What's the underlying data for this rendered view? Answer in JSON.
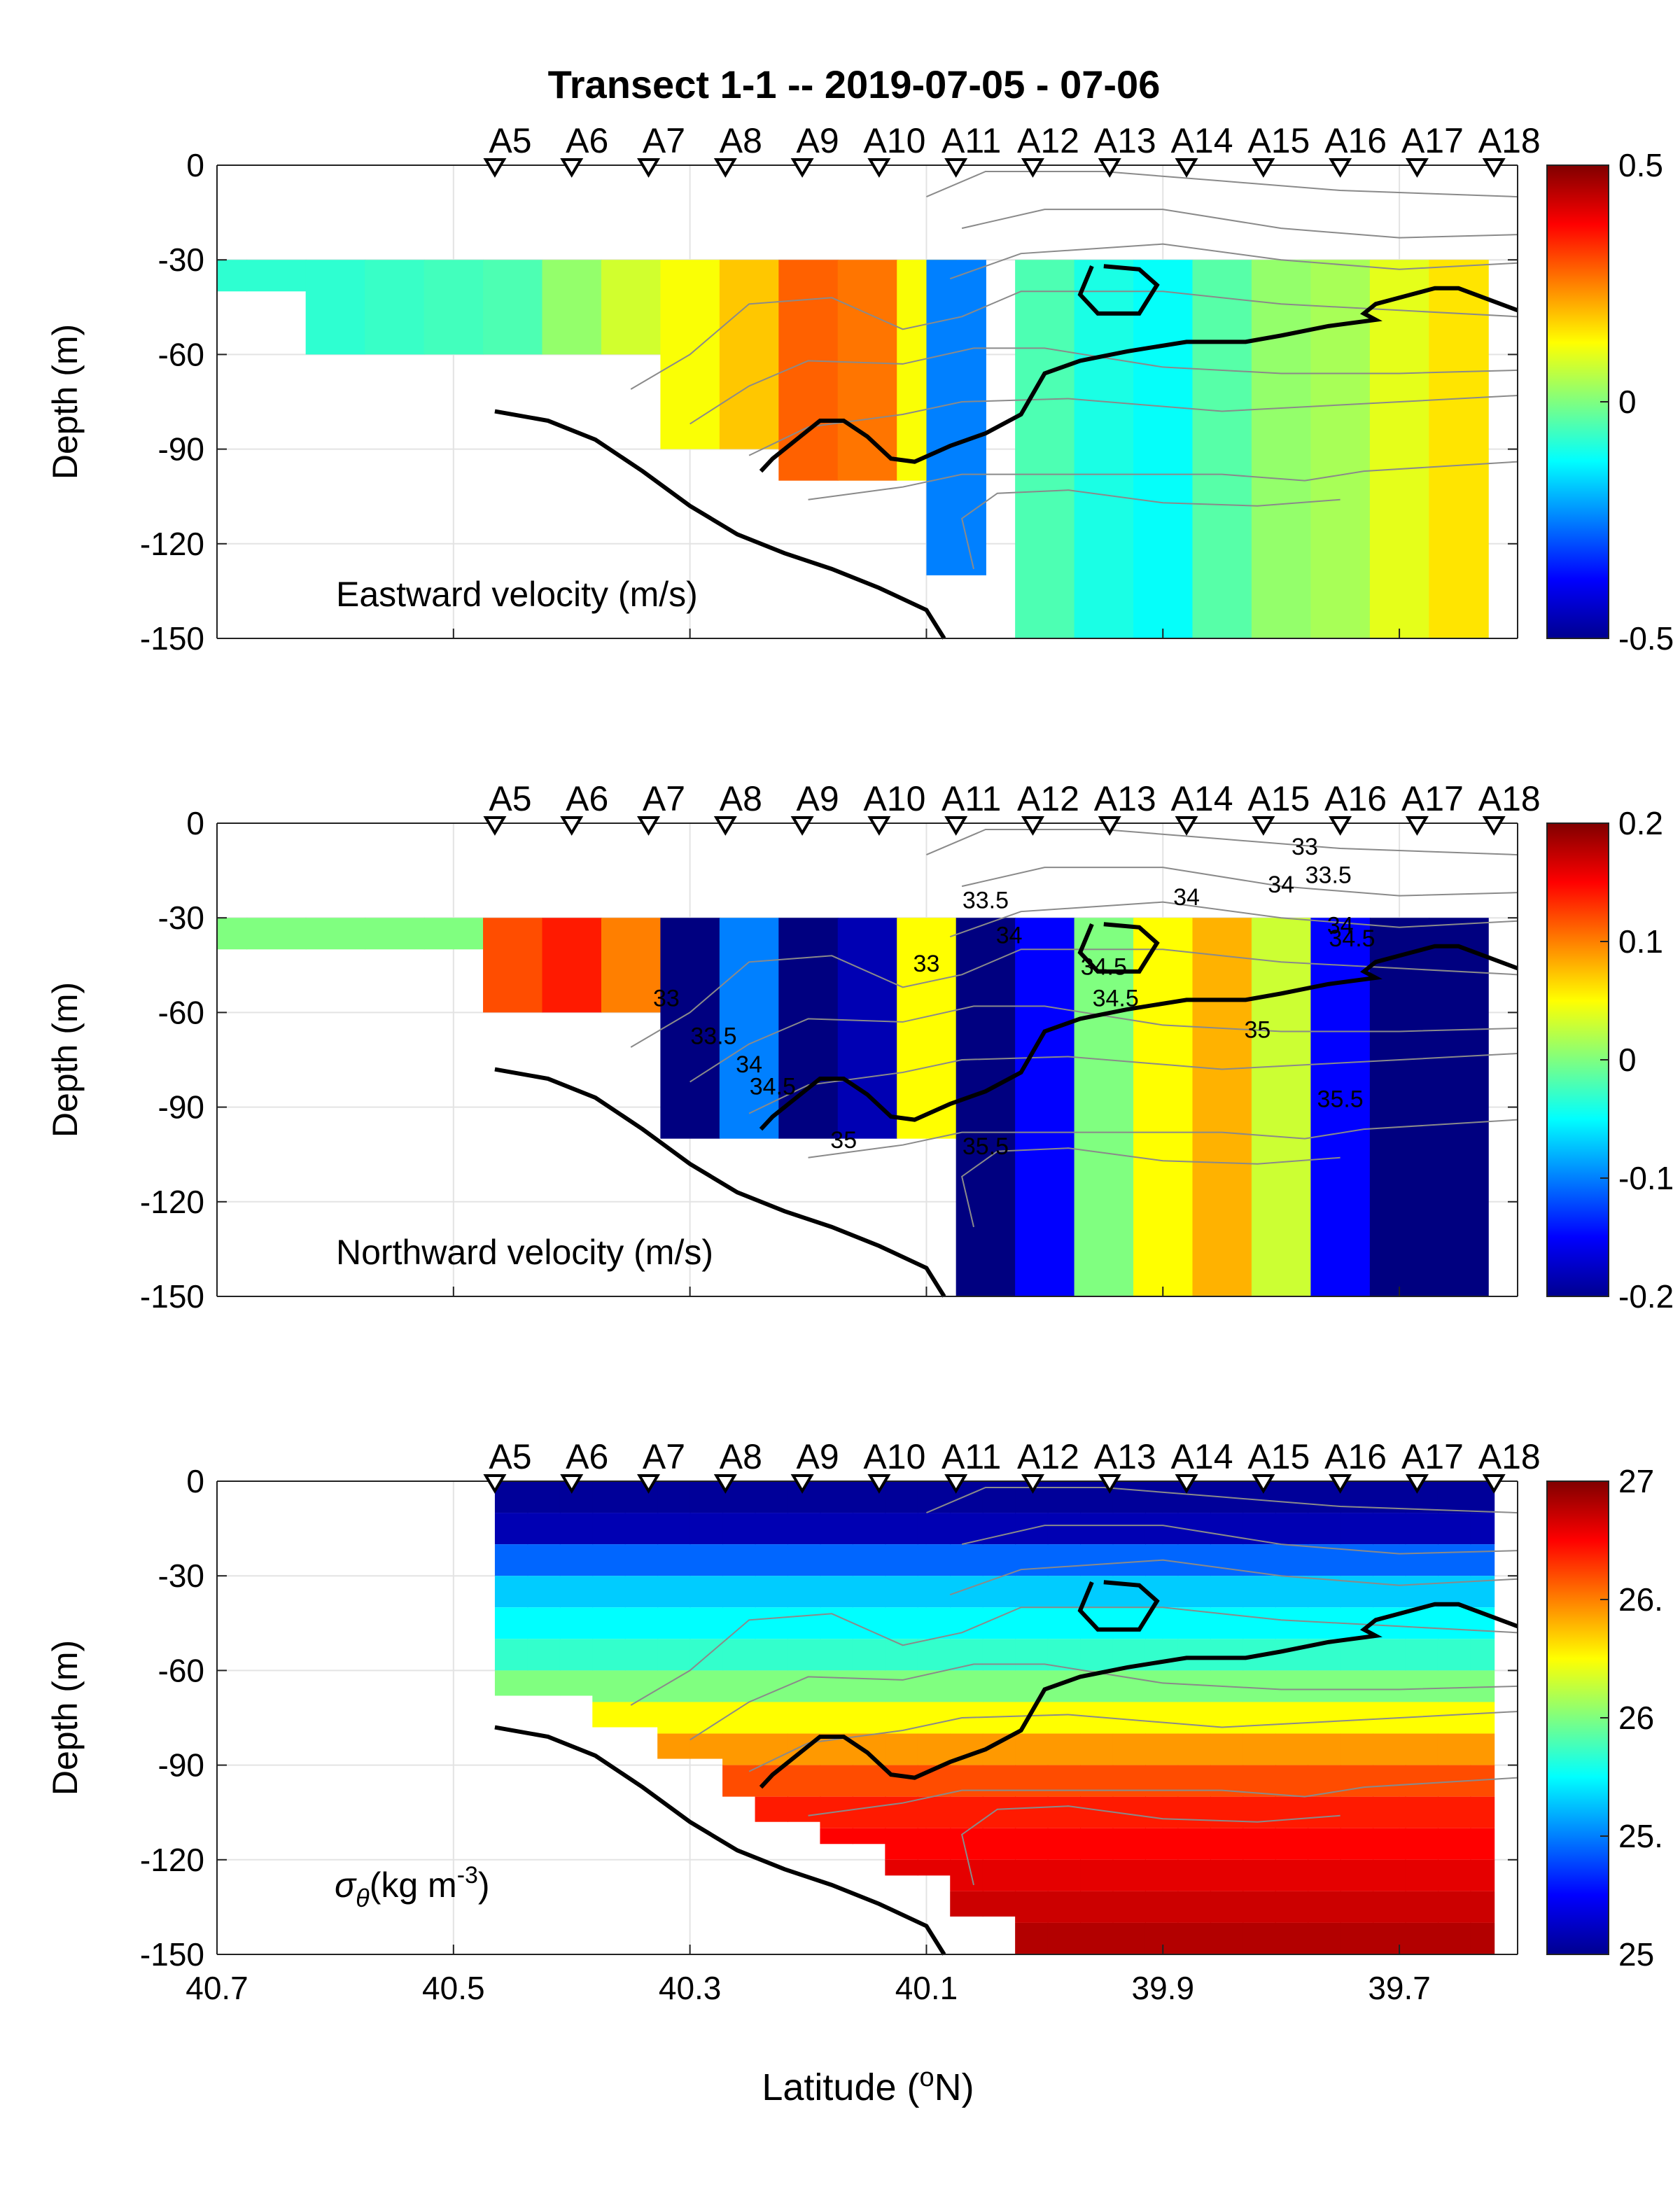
{
  "title": "Transect 1-1 -- 2019-07-05 - 07-06",
  "chart_data": [
    {
      "type": "heatmap",
      "panel_label": "Eastward velocity (m/s)",
      "ylabel": "Depth (m)",
      "xlim": [
        40.7,
        39.6
      ],
      "ylim": [
        -150,
        0
      ],
      "x_ticks": [
        "40.7",
        "40.5",
        "40.3",
        "40.1",
        "39.9",
        "39.7"
      ],
      "x_tick_values": [
        40.7,
        40.5,
        40.3,
        40.1,
        39.9,
        39.7
      ],
      "y_ticks": [
        "0",
        "-30",
        "-60",
        "-90",
        "-120",
        "-150"
      ],
      "y_tick_values": [
        0,
        -30,
        -60,
        -90,
        -120,
        -150
      ],
      "stations": [
        "A5",
        "A6",
        "A7",
        "A8",
        "A9",
        "A10",
        "A11",
        "A12",
        "A13",
        "A14",
        "A15",
        "A16",
        "A17",
        "A18"
      ],
      "station_lat": [
        40.465,
        40.4,
        40.335,
        40.27,
        40.205,
        40.14,
        40.075,
        40.01,
        39.945,
        39.88,
        39.815,
        39.75,
        39.685,
        39.62
      ],
      "colorbar": {
        "min": -0.5,
        "max": 0.5,
        "ticks": [
          "0.5",
          "0",
          "-0.5"
        ],
        "tick_values": [
          0.5,
          0,
          -0.5
        ],
        "colormap": "jet"
      },
      "grid": true,
      "sections": [
        {
          "lat": [
            40.7,
            40.65
          ],
          "top": -30,
          "bottom": -40,
          "values": [
            -0.08,
            -0.08
          ]
        },
        {
          "lat": [
            40.6,
            40.55,
            40.5
          ],
          "top": -30,
          "bottom": -60,
          "values": [
            -0.08,
            -0.07,
            -0.06
          ]
        },
        {
          "lat": [
            40.45,
            40.4,
            40.35
          ],
          "top": -30,
          "bottom": -60,
          "values": [
            -0.05,
            0.02,
            0.08
          ]
        },
        {
          "lat": [
            40.3,
            40.25
          ],
          "top": -30,
          "bottom": -90,
          "values": [
            0.12,
            0.18
          ]
        },
        {
          "lat": [
            40.2,
            40.15
          ],
          "top": -30,
          "bottom": -100,
          "values": [
            0.28,
            0.26
          ]
        },
        {
          "lat": [
            40.1
          ],
          "top": -30,
          "bottom": -100,
          "values": [
            0.12
          ]
        },
        {
          "lat": [
            40.075
          ],
          "top": -30,
          "bottom": -130,
          "values": [
            -0.25
          ]
        },
        {
          "lat": [
            40.0,
            39.95,
            39.9,
            39.85
          ],
          "top": -30,
          "bottom": -150,
          "values": [
            -0.05,
            -0.1,
            -0.12,
            -0.04
          ]
        },
        {
          "lat": [
            39.8,
            39.75,
            39.7,
            39.65
          ],
          "top": -30,
          "bottom": -150,
          "values": [
            0.02,
            0.04,
            0.1,
            0.15
          ]
        }
      ]
    },
    {
      "type": "heatmap",
      "panel_label": "Northward velocity (m/s)",
      "ylabel": "Depth (m)",
      "xlim": [
        40.7,
        39.6
      ],
      "ylim": [
        -150,
        0
      ],
      "x_ticks": [],
      "y_ticks": [
        "0",
        "-30",
        "-60",
        "-90",
        "-120",
        "-150"
      ],
      "y_tick_values": [
        0,
        -30,
        -60,
        -90,
        -120,
        -150
      ],
      "stations": [
        "A5",
        "A6",
        "A7",
        "A8",
        "A9",
        "A10",
        "A11",
        "A12",
        "A13",
        "A14",
        "A15",
        "A16",
        "A17",
        "A18"
      ],
      "colorbar": {
        "min": -0.2,
        "max": 0.2,
        "ticks": [
          "0.2",
          "0.1",
          "0",
          "-0.1",
          "-0.2"
        ],
        "tick_values": [
          0.2,
          0.1,
          0,
          -0.1,
          -0.2
        ],
        "colormap": "jet"
      },
      "salinity_contour_labels": [
        {
          "text": "33",
          "lat": 39.78,
          "depth": -10
        },
        {
          "text": "34",
          "lat": 39.8,
          "depth": -22
        },
        {
          "text": "33.5",
          "lat": 39.76,
          "depth": -19
        },
        {
          "text": "34",
          "lat": 39.88,
          "depth": -26
        },
        {
          "text": "33.5",
          "lat": 40.05,
          "depth": -27
        },
        {
          "text": "34",
          "lat": 40.03,
          "depth": -38
        },
        {
          "text": "34",
          "lat": 39.75,
          "depth": -35
        },
        {
          "text": "34.5",
          "lat": 39.74,
          "depth": -39
        },
        {
          "text": "33",
          "lat": 40.1,
          "depth": -47
        },
        {
          "text": "34.5",
          "lat": 39.95,
          "depth": -48
        },
        {
          "text": "34.5",
          "lat": 39.94,
          "depth": -58
        },
        {
          "text": "35",
          "lat": 39.82,
          "depth": -68
        },
        {
          "text": "33",
          "lat": 40.32,
          "depth": -58
        },
        {
          "text": "33.5",
          "lat": 40.28,
          "depth": -70
        },
        {
          "text": "34",
          "lat": 40.25,
          "depth": -79
        },
        {
          "text": "34.5",
          "lat": 40.23,
          "depth": -86
        },
        {
          "text": "35",
          "lat": 40.17,
          "depth": -103
        },
        {
          "text": "35.5",
          "lat": 40.05,
          "depth": -105
        },
        {
          "text": "35.5",
          "lat": 39.75,
          "depth": -90
        }
      ],
      "sections": [
        {
          "lat": [
            40.7,
            40.65,
            40.6,
            40.55,
            40.5
          ],
          "top": -30,
          "bottom": -40,
          "values": [
            0.0,
            0.0,
            0.0,
            0.0,
            0.0
          ]
        },
        {
          "lat": [
            40.45,
            40.4,
            40.35
          ],
          "top": -30,
          "bottom": -60,
          "values": [
            0.12,
            0.14,
            0.1
          ]
        },
        {
          "lat": [
            40.3,
            40.25,
            40.2,
            40.15,
            40.1
          ],
          "top": -30,
          "bottom": -100,
          "values": [
            -0.2,
            -0.1,
            -0.2,
            -0.18,
            0.05
          ]
        },
        {
          "lat": [
            40.05,
            40.0,
            39.95
          ],
          "top": -30,
          "bottom": -150,
          "values": [
            -0.2,
            -0.15,
            0.0
          ]
        },
        {
          "lat": [
            39.9,
            39.85,
            39.8
          ],
          "top": -30,
          "bottom": -150,
          "values": [
            0.05,
            0.08,
            0.03
          ]
        },
        {
          "lat": [
            39.75,
            39.7,
            39.65
          ],
          "top": -30,
          "bottom": -150,
          "values": [
            -0.15,
            -0.2,
            -0.2
          ]
        }
      ]
    },
    {
      "type": "heatmap",
      "panel_label": "σθ(kg m-3)",
      "panel_label_parts": {
        "sigma": "σ",
        "sub": "θ",
        "unit": "(kg m",
        "exp": "-3",
        "close": ")"
      },
      "xlabel": "Latitude (oN)",
      "xlabel_parts": {
        "pre": "Latitude (",
        "sup": "o",
        "post": "N)"
      },
      "ylabel": "Depth (m)",
      "xlim": [
        40.7,
        39.6
      ],
      "ylim": [
        -150,
        0
      ],
      "x_ticks": [
        "40.7",
        "40.5",
        "40.3",
        "40.1",
        "39.9",
        "39.7"
      ],
      "x_tick_values": [
        40.7,
        40.5,
        40.3,
        40.1,
        39.9,
        39.7
      ],
      "y_ticks": [
        "0",
        "-30",
        "-60",
        "-90",
        "-120",
        "-150"
      ],
      "y_tick_values": [
        0,
        -30,
        -60,
        -90,
        -120,
        -150
      ],
      "stations": [
        "A5",
        "A6",
        "A7",
        "A8",
        "A9",
        "A10",
        "A11",
        "A12",
        "A13",
        "A14",
        "A15",
        "A16",
        "A17",
        "A18"
      ],
      "colorbar": {
        "min": 25,
        "max": 27,
        "ticks": [
          "27",
          "26.",
          "26",
          "25.",
          "25"
        ],
        "tick_values": [
          27,
          26.5,
          26,
          25.5,
          25
        ],
        "colormap": "jet"
      },
      "profile_depths": [
        -5,
        -15,
        -25,
        -35,
        -45,
        -55,
        -65,
        -75,
        -85,
        -95,
        -105,
        -115,
        -125,
        -135,
        -145
      ],
      "profile_values": [
        25.05,
        25.1,
        25.45,
        25.65,
        25.75,
        25.85,
        26.0,
        26.25,
        26.45,
        26.6,
        26.7,
        26.75,
        26.8,
        26.85,
        26.9
      ],
      "data_extent": [
        {
          "lat": 40.465,
          "bottom": -68
        },
        {
          "lat": 40.4,
          "bottom": -68
        },
        {
          "lat": 40.35,
          "bottom": -78
        },
        {
          "lat": 40.3,
          "bottom": -88
        },
        {
          "lat": 40.25,
          "bottom": -100
        },
        {
          "lat": 40.2,
          "bottom": -108
        },
        {
          "lat": 40.15,
          "bottom": -115
        },
        {
          "lat": 40.1,
          "bottom": -125
        },
        {
          "lat": 40.05,
          "bottom": -138
        },
        {
          "lat": 40.0,
          "bottom": -150
        },
        {
          "lat": 39.62,
          "bottom": -150
        }
      ]
    }
  ],
  "bottom_line": [
    [
      40.465,
      -78
    ],
    [
      40.42,
      -81
    ],
    [
      40.38,
      -87
    ],
    [
      40.34,
      -97
    ],
    [
      40.3,
      -108
    ],
    [
      40.26,
      -117
    ],
    [
      40.22,
      -123
    ],
    [
      40.18,
      -128
    ],
    [
      40.14,
      -134
    ],
    [
      40.1,
      -141
    ],
    [
      40.085,
      -150
    ]
  ],
  "salinity_35_contour": [
    [
      40.24,
      -97
    ],
    [
      40.23,
      -93
    ],
    [
      40.21,
      -87
    ],
    [
      40.19,
      -81
    ],
    [
      40.17,
      -81
    ],
    [
      40.15,
      -86
    ],
    [
      40.13,
      -93
    ],
    [
      40.11,
      -94
    ],
    [
      40.08,
      -89
    ],
    [
      40.05,
      -85
    ],
    [
      40.02,
      -79
    ],
    [
      40.0,
      -66
    ],
    [
      39.97,
      -62
    ],
    [
      39.93,
      -59
    ],
    [
      39.88,
      -56
    ],
    [
      39.83,
      -56
    ],
    [
      39.8,
      -54
    ],
    [
      39.76,
      -51
    ],
    [
      39.72,
      -49
    ],
    [
      39.73,
      -47
    ],
    [
      39.72,
      -44
    ],
    [
      39.69,
      -41
    ],
    [
      39.67,
      -39
    ],
    [
      39.65,
      -39
    ],
    [
      39.6,
      -46
    ]
  ],
  "salinity_35_loop": [
    [
      39.95,
      -32
    ],
    [
      39.92,
      -33
    ],
    [
      39.905,
      -38
    ],
    [
      39.92,
      -47
    ],
    [
      39.955,
      -47
    ],
    [
      39.97,
      -41
    ],
    [
      39.96,
      -32
    ]
  ],
  "thin_contours": [
    [
      [
        40.1,
        -10
      ],
      [
        40.05,
        -2
      ],
      [
        39.95,
        -2
      ],
      [
        39.85,
        -5
      ],
      [
        39.75,
        -8
      ],
      [
        39.6,
        -10
      ]
    ],
    [
      [
        40.07,
        -20
      ],
      [
        40.0,
        -14
      ],
      [
        39.9,
        -14
      ],
      [
        39.8,
        -20
      ],
      [
        39.7,
        -23
      ],
      [
        39.6,
        -22
      ]
    ],
    [
      [
        40.08,
        -36
      ],
      [
        40.02,
        -28
      ],
      [
        39.9,
        -25
      ],
      [
        39.8,
        -30
      ],
      [
        39.7,
        -33
      ],
      [
        39.6,
        -31
      ]
    ],
    [
      [
        40.35,
        -71
      ],
      [
        40.3,
        -60
      ],
      [
        40.25,
        -44
      ],
      [
        40.18,
        -42
      ],
      [
        40.12,
        -52
      ],
      [
        40.07,
        -48
      ],
      [
        40.02,
        -40
      ],
      [
        39.9,
        -40
      ],
      [
        39.8,
        -44
      ],
      [
        39.7,
        -46
      ],
      [
        39.6,
        -48
      ]
    ],
    [
      [
        40.3,
        -82
      ],
      [
        40.25,
        -70
      ],
      [
        40.2,
        -62
      ],
      [
        40.12,
        -63
      ],
      [
        40.06,
        -58
      ],
      [
        40.0,
        -58
      ],
      [
        39.9,
        -64
      ],
      [
        39.8,
        -66
      ],
      [
        39.7,
        -66
      ],
      [
        39.6,
        -65
      ]
    ],
    [
      [
        40.25,
        -92
      ],
      [
        40.2,
        -83
      ],
      [
        40.12,
        -79
      ],
      [
        40.07,
        -75
      ],
      [
        39.98,
        -74
      ],
      [
        39.85,
        -78
      ],
      [
        39.75,
        -76
      ],
      [
        39.6,
        -73
      ]
    ],
    [
      [
        40.2,
        -106
      ],
      [
        40.12,
        -102
      ],
      [
        40.07,
        -98
      ],
      [
        39.98,
        -98
      ],
      [
        39.85,
        -98
      ],
      [
        39.78,
        -100
      ],
      [
        39.73,
        -97
      ],
      [
        39.6,
        -94
      ]
    ],
    [
      [
        40.06,
        -128
      ],
      [
        40.07,
        -112
      ],
      [
        40.04,
        -104
      ],
      [
        39.98,
        -103
      ],
      [
        39.9,
        -107
      ],
      [
        39.82,
        -108
      ],
      [
        39.75,
        -106
      ]
    ]
  ]
}
